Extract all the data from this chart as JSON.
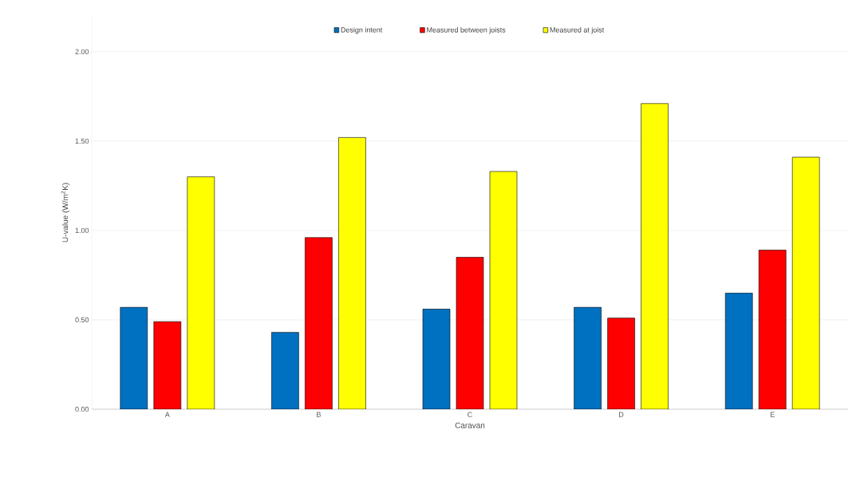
{
  "chart_data": {
    "type": "bar",
    "xlabel": "Caravan",
    "ylabel": "U-value (W/m$^{2}$K)",
    "categories": [
      "A",
      "B",
      "C",
      "D",
      "E"
    ],
    "series": [
      {
        "name": "Design intent",
        "color": "#0070c0",
        "values": [
          0.57,
          0.43,
          0.56,
          0.57,
          0.65
        ]
      },
      {
        "name": "Measured between joists",
        "color": "#ff0000",
        "values": [
          0.49,
          0.96,
          0.85,
          0.51,
          0.89
        ]
      },
      {
        "name": "Measured at joist",
        "color": "#ffff00",
        "values": [
          1.3,
          1.52,
          1.33,
          1.71,
          1.41
        ]
      }
    ],
    "ylim": [
      0,
      2.2
    ],
    "yticks": [
      {
        "value": 0,
        "label": "0.00"
      },
      {
        "value": 0.5,
        "label": "0.50"
      },
      {
        "value": 1,
        "label": "1.00"
      },
      {
        "value": 1.5,
        "label": "1.50"
      },
      {
        "value": 2,
        "label": "2.00"
      }
    ],
    "grid": "y",
    "legend": "top"
  }
}
